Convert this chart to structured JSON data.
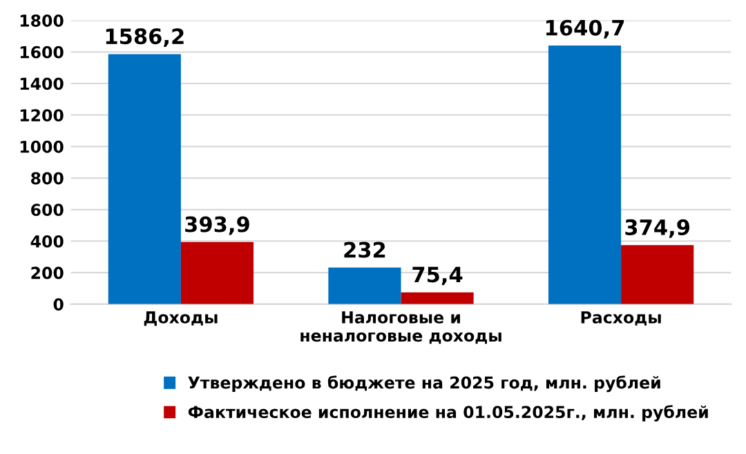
{
  "chart_data": {
    "type": "bar",
    "categories": [
      "Доходы",
      "Налоговые и\nненалоговые доходы",
      "Расходы"
    ],
    "series": [
      {
        "name": "Утверждено в бюджете на 2025 год, млн. рублей",
        "color": "#0070c0",
        "values": [
          1586.2,
          232,
          1640.7
        ],
        "value_labels": [
          "1586,2",
          "232",
          "1640,7"
        ]
      },
      {
        "name": "Фактическое исполнение на 01.05.2025г., млн. рублей",
        "color": "#c00000",
        "values": [
          393.9,
          75.4,
          374.9
        ],
        "value_labels": [
          "393,9",
          "75,4",
          "374,9"
        ]
      }
    ],
    "ylim": [
      0,
      1800
    ],
    "yticks": [
      0,
      200,
      400,
      600,
      800,
      1000,
      1200,
      1400,
      1600,
      1800
    ],
    "grid": "y",
    "legend": "bottom"
  }
}
